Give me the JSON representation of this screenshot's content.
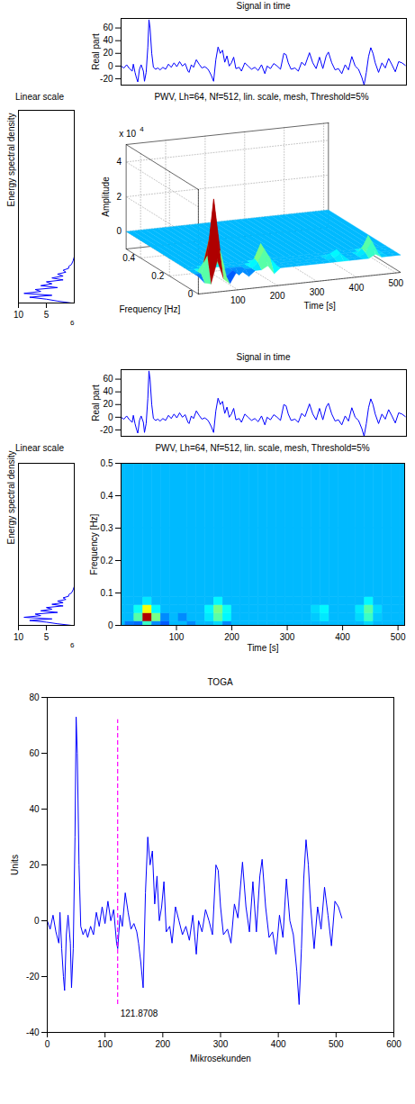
{
  "chart_data": [
    {
      "type": "line",
      "title": "Signal in time",
      "ylabel": "Real part",
      "x": [
        0,
        5,
        10,
        15,
        20,
        22,
        25,
        28,
        30,
        33,
        36,
        40,
        42,
        45,
        48,
        50,
        52,
        55,
        58,
        62,
        66,
        70,
        75,
        80,
        85,
        90,
        95,
        100,
        105,
        110,
        115,
        120,
        122,
        126,
        130,
        135,
        140,
        145,
        150,
        155,
        158,
        162,
        166,
        170,
        174,
        178,
        182,
        186,
        190,
        194,
        198,
        202,
        206,
        212,
        216,
        222,
        228,
        234,
        240,
        246,
        252,
        258,
        262,
        268,
        274,
        280,
        286,
        292,
        296,
        300,
        305,
        312,
        318,
        324,
        330,
        338,
        344,
        350,
        356,
        362,
        368,
        372,
        378,
        384,
        390,
        396,
        402,
        408,
        414,
        420,
        426,
        432,
        436,
        440,
        444,
        448,
        452,
        456,
        462,
        468,
        474,
        480,
        486,
        492,
        498,
        504,
        510
      ],
      "values": [
        0,
        -3,
        2,
        -4,
        -8,
        3,
        -10,
        -20,
        -25,
        -5,
        2,
        -8,
        -24,
        -10,
        30,
        73,
        60,
        20,
        -2,
        -5,
        -3,
        -6,
        -2,
        -5,
        3,
        -2,
        5,
        -1,
        7,
        0,
        4,
        -8,
        -10,
        2,
        -2,
        10,
        3,
        -3,
        -1,
        -4,
        -8,
        -15,
        -24,
        10,
        30,
        20,
        25,
        6,
        16,
        0,
        5,
        14,
        -4,
        -2,
        -8,
        5,
        0,
        -5,
        -2,
        -7,
        2,
        -12,
        0,
        -4,
        4,
        0,
        -5,
        20,
        18,
        5,
        -5,
        -3,
        -8,
        6,
        1,
        21,
        5,
        -4,
        14,
        -4,
        16,
        22,
        5,
        -6,
        -4,
        -12,
        2,
        -6,
        15,
        0,
        -5,
        -18,
        -30,
        -10,
        15,
        29,
        20,
        5,
        -10,
        5,
        -3,
        12,
        2,
        -9,
        7,
        5,
        1
      ],
      "xlim": [
        0,
        512
      ],
      "ylim": [
        -30,
        75
      ],
      "yticks": [
        -20,
        0,
        20,
        40,
        60
      ],
      "tick_labels": "y",
      "color": "#0000ff"
    },
    {
      "type": "line",
      "orientation": "horizontal",
      "title": "Linear scale",
      "ylabel": "Energy spectral density",
      "y": [
        0,
        0.005,
        0.01,
        0.015,
        0.02,
        0.025,
        0.03,
        0.035,
        0.04,
        0.045,
        0.05,
        0.055,
        0.06,
        0.065,
        0.07,
        0.075,
        0.08,
        0.085,
        0.09,
        0.095,
        0.1,
        0.11,
        0.12
      ],
      "values": [
        0.5,
        3,
        5,
        8,
        4,
        9,
        6,
        7,
        3,
        6,
        4,
        5,
        2,
        4,
        2,
        3,
        1.5,
        2,
        1,
        1,
        0.5,
        0.2,
        0
      ],
      "xlim": [
        10,
        0
      ],
      "xticks": [
        10,
        5
      ],
      "x_exponent": "6",
      "ylim": [
        0,
        0.5
      ],
      "tick_labels": "x",
      "color": "#0000ff"
    },
    {
      "type": "surface",
      "title": "PWV, Lh=64, Nf=512, lin. scale, mesh, Threshold=5%",
      "xlabel": "Time [s]",
      "ylabel": "Frequency [Hz]",
      "zlabel": "Amplitude",
      "z_multiplier": "x 10",
      "z_multiplier_exponent": "4",
      "times": [
        0,
        16,
        32,
        48,
        64,
        80,
        96,
        112,
        128,
        144,
        160,
        176,
        192,
        208,
        224,
        240,
        256,
        272,
        288,
        304,
        320,
        336,
        352,
        368,
        384,
        400,
        416,
        432,
        448,
        464,
        480,
        496,
        512
      ],
      "frequencies": [
        0,
        0.025,
        0.05,
        0.075,
        0.1,
        0.5
      ],
      "amplitude": [
        [
          0,
          -0.4,
          -0.5,
          0.8,
          -0.3,
          -0.6,
          0,
          0,
          -0.3,
          0,
          0,
          0.2,
          -0.3,
          0,
          0,
          0,
          0,
          0,
          0,
          0,
          0,
          0,
          0,
          0,
          0,
          0,
          0,
          0,
          0.2,
          0,
          0,
          0,
          0
        ],
        [
          0,
          0,
          1.0,
          4.2,
          1.2,
          -0.3,
          0,
          -0.3,
          0,
          0,
          0.3,
          1.0,
          0.4,
          0,
          0,
          0,
          0,
          0,
          0,
          0,
          0,
          0,
          0.1,
          0.3,
          0,
          0,
          0,
          0.2,
          0.8,
          0.1,
          0,
          0,
          0
        ],
        [
          0,
          0,
          0.5,
          2.0,
          0.4,
          0,
          0,
          0,
          0,
          0,
          0.4,
          1.2,
          0.5,
          0,
          0,
          0,
          0,
          0,
          0,
          0,
          0,
          0,
          0.2,
          0.4,
          0,
          0,
          0,
          0.3,
          1.0,
          0.2,
          0,
          0,
          0
        ],
        [
          0,
          0,
          0,
          0.3,
          0,
          0,
          0,
          0,
          0,
          0,
          0,
          0.4,
          0,
          0,
          0,
          0,
          0,
          0,
          0,
          0,
          0,
          0,
          0,
          0,
          0,
          0,
          0,
          0,
          0.4,
          0,
          0,
          0,
          0
        ],
        [
          0,
          0,
          0,
          0,
          0,
          0,
          0,
          0,
          0,
          0,
          0,
          0,
          0,
          0,
          0,
          0,
          0,
          0,
          0,
          0,
          0,
          0,
          0,
          0,
          0,
          0,
          0,
          0,
          0,
          0,
          0,
          0,
          0
        ],
        [
          0,
          0,
          0,
          0,
          0,
          0,
          0,
          0,
          0,
          0,
          0,
          0,
          0,
          0,
          0,
          0,
          0,
          0,
          0,
          0,
          0,
          0,
          0,
          0,
          0,
          0,
          0,
          0,
          0,
          0,
          0,
          0,
          0
        ]
      ],
      "xlim": [
        0,
        512
      ],
      "xticks": [
        100,
        200,
        300,
        400,
        500
      ],
      "ylim": [
        0,
        0.5
      ],
      "yticks": [
        0,
        0.2,
        0.4
      ],
      "zlim": [
        -1,
        5
      ],
      "zticks": [
        0,
        2,
        4
      ],
      "color_range": [
        -2,
        4.5
      ]
    },
    {
      "type": "line",
      "title": "Signal in time",
      "ylabel": "Real part",
      "x": [
        0,
        5,
        10,
        15,
        20,
        22,
        25,
        28,
        30,
        33,
        36,
        40,
        42,
        45,
        48,
        50,
        52,
        55,
        58,
        62,
        66,
        70,
        75,
        80,
        85,
        90,
        95,
        100,
        105,
        110,
        115,
        120,
        122,
        126,
        130,
        135,
        140,
        145,
        150,
        155,
        158,
        162,
        166,
        170,
        174,
        178,
        182,
        186,
        190,
        194,
        198,
        202,
        206,
        212,
        216,
        222,
        228,
        234,
        240,
        246,
        252,
        258,
        262,
        268,
        274,
        280,
        286,
        292,
        296,
        300,
        305,
        312,
        318,
        324,
        330,
        338,
        344,
        350,
        356,
        362,
        368,
        372,
        378,
        384,
        390,
        396,
        402,
        408,
        414,
        420,
        426,
        432,
        436,
        440,
        444,
        448,
        452,
        456,
        462,
        468,
        474,
        480,
        486,
        492,
        498,
        504,
        510
      ],
      "values": [
        0,
        -3,
        2,
        -4,
        -8,
        3,
        -10,
        -20,
        -25,
        -5,
        2,
        -8,
        -24,
        -10,
        30,
        73,
        60,
        20,
        -2,
        -5,
        -3,
        -6,
        -2,
        -5,
        3,
        -2,
        5,
        -1,
        7,
        0,
        4,
        -8,
        -10,
        2,
        -2,
        10,
        3,
        -3,
        -1,
        -4,
        -8,
        -15,
        -24,
        10,
        30,
        20,
        25,
        6,
        16,
        0,
        5,
        14,
        -4,
        -2,
        -8,
        5,
        0,
        -5,
        -2,
        -7,
        2,
        -12,
        0,
        -4,
        4,
        0,
        -5,
        20,
        18,
        5,
        -5,
        -3,
        -8,
        6,
        1,
        21,
        5,
        -4,
        14,
        -4,
        16,
        22,
        5,
        -6,
        -4,
        -12,
        2,
        -6,
        15,
        0,
        -5,
        -18,
        -30,
        -10,
        15,
        29,
        20,
        5,
        -10,
        5,
        -3,
        12,
        2,
        -9,
        7,
        5,
        1
      ],
      "xlim": [
        0,
        512
      ],
      "ylim": [
        -30,
        75
      ],
      "yticks": [
        -20,
        0,
        20,
        40,
        60
      ],
      "tick_labels": "y",
      "color": "#0000ff"
    },
    {
      "type": "line",
      "orientation": "horizontal",
      "title": "Linear scale",
      "ylabel": "Energy spectral density",
      "y": [
        0,
        0.005,
        0.01,
        0.015,
        0.02,
        0.025,
        0.03,
        0.035,
        0.04,
        0.045,
        0.05,
        0.055,
        0.06,
        0.065,
        0.07,
        0.075,
        0.08,
        0.085,
        0.09,
        0.095,
        0.1,
        0.11,
        0.12
      ],
      "values": [
        0.5,
        3,
        5,
        8,
        4,
        9,
        6,
        7,
        3,
        6,
        4,
        5,
        2,
        4,
        2,
        3,
        1.5,
        2,
        1,
        1,
        0.5,
        0.2,
        0
      ],
      "xlim": [
        10,
        0
      ],
      "xticks": [
        10,
        5
      ],
      "x_exponent": "6",
      "ylim": [
        0,
        0.5
      ],
      "tick_labels": "x",
      "color": "#0000ff"
    },
    {
      "type": "heatmap",
      "title": "PWV, Lh=64, Nf=512, lin. scale, mesh, Threshold=5%",
      "xlabel": "Time [s]",
      "ylabel": "Frequency [Hz]",
      "times": [
        0,
        16,
        32,
        48,
        64,
        80,
        96,
        112,
        128,
        144,
        160,
        176,
        192,
        208,
        224,
        240,
        256,
        272,
        288,
        304,
        320,
        336,
        352,
        368,
        384,
        400,
        416,
        432,
        448,
        464,
        480,
        496,
        512
      ],
      "frequencies": [
        0,
        0.025,
        0.05,
        0.075,
        0.1,
        0.5
      ],
      "amplitude": [
        [
          0,
          -0.4,
          -0.5,
          0.8,
          -0.3,
          -0.6,
          0,
          0,
          -0.3,
          0,
          0,
          0.2,
          -0.3,
          0,
          0,
          0,
          0,
          0,
          0,
          0,
          0,
          0,
          0,
          0,
          0,
          0,
          0,
          0,
          0.2,
          0,
          0,
          0,
          0
        ],
        [
          0,
          0,
          1.0,
          4.2,
          1.2,
          -0.3,
          0,
          -0.3,
          0,
          0,
          0.3,
          1.0,
          0.4,
          0,
          0,
          0,
          0,
          0,
          0,
          0,
          0,
          0,
          0.1,
          0.3,
          0,
          0,
          0,
          0.2,
          0.8,
          0.1,
          0,
          0,
          0
        ],
        [
          0,
          0,
          0.5,
          2.0,
          0.4,
          0,
          0,
          0,
          0,
          0,
          0.4,
          1.2,
          0.5,
          0,
          0,
          0,
          0,
          0,
          0,
          0,
          0,
          0,
          0.2,
          0.4,
          0,
          0,
          0,
          0.3,
          1.0,
          0.2,
          0,
          0,
          0
        ],
        [
          0,
          0,
          0,
          0.3,
          0,
          0,
          0,
          0,
          0,
          0,
          0,
          0.4,
          0,
          0,
          0,
          0,
          0,
          0,
          0,
          0,
          0,
          0,
          0,
          0,
          0,
          0,
          0,
          0,
          0.4,
          0,
          0,
          0,
          0
        ],
        [
          0,
          0,
          0,
          0,
          0,
          0,
          0,
          0,
          0,
          0,
          0,
          0,
          0,
          0,
          0,
          0,
          0,
          0,
          0,
          0,
          0,
          0,
          0,
          0,
          0,
          0,
          0,
          0,
          0,
          0,
          0,
          0,
          0
        ],
        [
          0,
          0,
          0,
          0,
          0,
          0,
          0,
          0,
          0,
          0,
          0,
          0,
          0,
          0,
          0,
          0,
          0,
          0,
          0,
          0,
          0,
          0,
          0,
          0,
          0,
          0,
          0,
          0,
          0,
          0,
          0,
          0,
          0
        ]
      ],
      "xlim": [
        0,
        512
      ],
      "xticks": [
        100,
        200,
        300,
        400,
        500
      ],
      "ylim": [
        0,
        0.5
      ],
      "yticks": [
        0,
        0.1,
        0.2,
        0.3,
        0.4,
        0.5
      ],
      "color_range": [
        -2,
        4.5
      ]
    },
    {
      "type": "line",
      "title": "TOGA",
      "xlabel": "Mikrosekunden",
      "ylabel": "Units",
      "x": [
        0,
        5,
        10,
        15,
        20,
        22,
        25,
        28,
        30,
        33,
        36,
        40,
        42,
        45,
        48,
        50,
        52,
        55,
        58,
        62,
        66,
        70,
        75,
        80,
        85,
        90,
        95,
        100,
        105,
        110,
        115,
        120,
        122,
        126,
        130,
        135,
        140,
        145,
        150,
        155,
        158,
        162,
        166,
        170,
        174,
        178,
        182,
        186,
        190,
        194,
        198,
        202,
        206,
        212,
        216,
        222,
        228,
        234,
        240,
        246,
        252,
        258,
        262,
        268,
        274,
        280,
        286,
        292,
        296,
        300,
        305,
        312,
        318,
        324,
        330,
        338,
        344,
        350,
        356,
        362,
        368,
        372,
        378,
        384,
        390,
        396,
        402,
        408,
        414,
        420,
        426,
        432,
        436,
        440,
        444,
        448,
        452,
        456,
        462,
        468,
        474,
        480,
        486,
        492,
        498,
        504,
        510
      ],
      "values": [
        0,
        -3,
        2,
        -4,
        -8,
        3,
        -10,
        -20,
        -25,
        -5,
        2,
        -8,
        -24,
        -10,
        30,
        73,
        60,
        20,
        -2,
        -5,
        -3,
        -6,
        -2,
        -5,
        3,
        -2,
        5,
        -1,
        7,
        0,
        4,
        -8,
        -10,
        2,
        -2,
        10,
        3,
        -3,
        -1,
        -4,
        -8,
        -15,
        -24,
        10,
        30,
        20,
        25,
        6,
        16,
        0,
        5,
        14,
        -4,
        -2,
        -8,
        5,
        0,
        -5,
        -2,
        -7,
        2,
        -12,
        0,
        -4,
        4,
        0,
        -5,
        20,
        18,
        5,
        -5,
        -3,
        -8,
        6,
        1,
        21,
        5,
        -4,
        14,
        -4,
        16,
        22,
        5,
        -6,
        -4,
        -12,
        2,
        -6,
        15,
        0,
        -5,
        -18,
        -30,
        -10,
        15,
        29,
        20,
        5,
        -10,
        5,
        -3,
        12,
        2,
        -9,
        7,
        5,
        1
      ],
      "xlim": [
        0,
        600
      ],
      "xticks": [
        0,
        100,
        200,
        300,
        400,
        500,
        600
      ],
      "ylim": [
        -40,
        80
      ],
      "yticks": [
        -40,
        -20,
        0,
        20,
        40,
        60,
        80
      ],
      "color": "#0000ff",
      "annotations": [
        {
          "x": 121.8708,
          "y1": -30,
          "y2": 72,
          "text": "121.8708",
          "color": "#ff00ff",
          "line_style": "dashed"
        }
      ]
    }
  ]
}
